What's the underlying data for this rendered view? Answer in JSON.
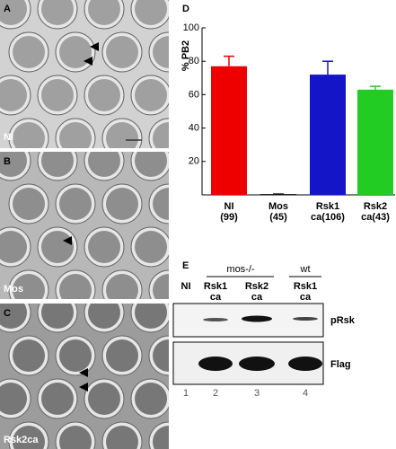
{
  "panels": [
    {
      "letter": "A",
      "label": "NI"
    },
    {
      "letter": "B",
      "label": "Mos"
    },
    {
      "letter": "C",
      "label": "Rsk2ca"
    }
  ],
  "chart_data": {
    "type": "bar",
    "panel": "D",
    "y_label": "% PB2",
    "categories": [
      "NI (99)",
      "Mos (45)",
      "Rsk1 ca(106)",
      "Rsk2 ca(43)"
    ],
    "values": [
      77,
      0.5,
      72,
      63
    ],
    "errors": [
      6,
      0,
      8,
      2
    ],
    "colors": [
      "#ee0000",
      "#111111",
      "#1515c8",
      "#22cc22"
    ],
    "ylim": [
      0,
      100
    ],
    "yticks": [
      20,
      40,
      60,
      80,
      100
    ]
  },
  "blot": {
    "panel": "E",
    "groups": [
      "mos-/-",
      "wt"
    ],
    "lanes": [
      "NI",
      "Rsk1 ca",
      "Rsk2 ca",
      "Rsk1 ca"
    ],
    "lane_numbers": [
      1,
      2,
      3,
      4
    ],
    "rows": [
      "pRsk",
      "Flag"
    ]
  }
}
